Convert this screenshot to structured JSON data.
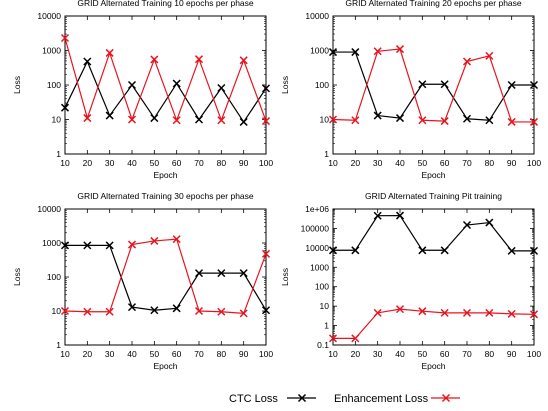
{
  "legend": {
    "ctc_label": "CTC Loss",
    "enh_label": "Enhancement Loss"
  },
  "series_colors": {
    "ctc": "#000000",
    "enh": "#e8141e"
  },
  "chart_data": [
    {
      "type": "line",
      "title": "GRID Alternated Training 10 epochs per phase",
      "xlabel": "Epoch",
      "ylabel": "Loss",
      "y_scale": "log",
      "ylim": [
        1,
        10000
      ],
      "yticks": [
        1,
        10,
        100,
        1000,
        10000
      ],
      "ytick_labels": [
        "1",
        "10",
        "100",
        "1000",
        "10000"
      ],
      "x": [
        10,
        20,
        30,
        40,
        50,
        60,
        70,
        80,
        90,
        100
      ],
      "series": [
        {
          "name": "CTC Loss",
          "values": [
            22,
            480,
            13,
            100,
            11,
            110,
            10,
            82,
            8.5,
            80
          ]
        },
        {
          "name": "Enhancement Loss",
          "values": [
            2300,
            11,
            850,
            10,
            550,
            9.5,
            560,
            9.5,
            520,
            9
          ]
        }
      ]
    },
    {
      "type": "line",
      "title": "GRID Alternated Training 20 epochs per phase",
      "xlabel": "Epoch",
      "ylabel": "Loss",
      "y_scale": "log",
      "ylim": [
        1,
        10000
      ],
      "yticks": [
        1,
        10,
        100,
        1000,
        10000
      ],
      "ytick_labels": [
        "1",
        "10",
        "100",
        "1000",
        "10000"
      ],
      "x": [
        10,
        20,
        30,
        40,
        50,
        60,
        70,
        80,
        90,
        100
      ],
      "series": [
        {
          "name": "CTC Loss",
          "values": [
            900,
            900,
            13,
            11,
            105,
            105,
            10.5,
            9.5,
            100,
            100
          ]
        },
        {
          "name": "Enhancement Loss",
          "values": [
            10,
            9.5,
            950,
            1100,
            9.5,
            9,
            480,
            700,
            8.5,
            8.5
          ]
        }
      ]
    },
    {
      "type": "line",
      "title": "GRID Alternated Training 30 epochs per phase",
      "xlabel": "Epoch",
      "ylabel": "Loss",
      "y_scale": "log",
      "ylim": [
        1,
        10000
      ],
      "yticks": [
        1,
        10,
        100,
        1000,
        10000
      ],
      "ytick_labels": [
        "1",
        "10",
        "100",
        "1000",
        "10000"
      ],
      "x": [
        10,
        20,
        30,
        40,
        50,
        60,
        70,
        80,
        90,
        100
      ],
      "series": [
        {
          "name": "CTC Loss",
          "values": [
            850,
            850,
            850,
            13,
            10.5,
            12,
            130,
            130,
            130,
            10.5
          ]
        },
        {
          "name": "Enhancement Loss",
          "values": [
            10,
            9.5,
            9.5,
            900,
            1150,
            1300,
            10,
            9.5,
            8.5,
            480
          ]
        }
      ]
    },
    {
      "type": "line",
      "title": "GRID Alternated Training Pit training",
      "xlabel": "Epoch",
      "ylabel": "Loss",
      "y_scale": "log",
      "ylim": [
        0.1,
        1000000
      ],
      "yticks": [
        0.1,
        1,
        10,
        100,
        1000,
        10000,
        100000,
        1000000
      ],
      "ytick_labels": [
        "0.1",
        "1",
        "10",
        "100",
        "1000",
        "10000",
        "100000",
        "1e+06"
      ],
      "x": [
        10,
        20,
        30,
        40,
        50,
        60,
        70,
        80,
        90,
        100
      ],
      "series": [
        {
          "name": "CTC Loss",
          "values": [
            7500,
            7500,
            450000,
            460000,
            7500,
            7500,
            150000,
            200000,
            7000,
            7000
          ]
        },
        {
          "name": "Enhancement Loss",
          "values": [
            0.22,
            0.22,
            4.5,
            7,
            5.5,
            4.5,
            4.5,
            4.5,
            4,
            3.8
          ]
        }
      ]
    }
  ]
}
